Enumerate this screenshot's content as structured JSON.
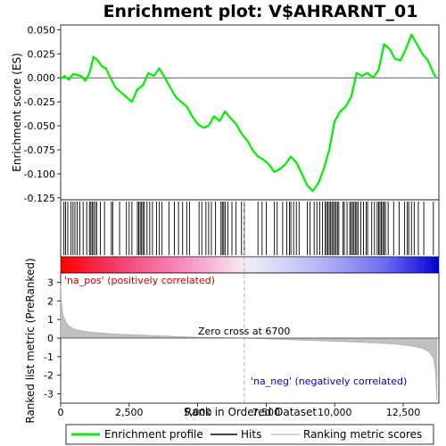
{
  "chart_data": [
    {
      "type": "line",
      "title": "Enrichment plot: V$AHRARNT_01",
      "ylabel": "Enrichment score (ES)",
      "xlim": [
        0,
        13800
      ],
      "ylim": [
        -0.127,
        0.055
      ],
      "yticks": [
        0.05,
        0.025,
        0.0,
        -0.025,
        -0.05,
        -0.075,
        -0.1,
        -0.125
      ],
      "ytick_labels": [
        "0.050",
        "0.025",
        "0.000",
        "-0.025",
        "-0.050",
        "-0.075",
        "-0.100",
        "-0.125"
      ],
      "series": [
        {
          "name": "Enrichment profile",
          "color": "#00ee00",
          "x": [
            0,
            150,
            300,
            450,
            600,
            750,
            900,
            1050,
            1200,
            1350,
            1500,
            1650,
            1800,
            2000,
            2200,
            2400,
            2600,
            2800,
            3000,
            3200,
            3400,
            3600,
            3800,
            4000,
            4200,
            4400,
            4600,
            4800,
            5000,
            5200,
            5400,
            5600,
            5800,
            6000,
            6200,
            6400,
            6600,
            6800,
            7000,
            7200,
            7400,
            7600,
            7800,
            8000,
            8200,
            8400,
            8600,
            8800,
            9000,
            9200,
            9400,
            9600,
            9800,
            10000,
            10200,
            10400,
            10600,
            10800,
            11000,
            11200,
            11400,
            11600,
            11800,
            12000,
            12200,
            12400,
            12600,
            12800,
            13000,
            13200,
            13400,
            13600,
            13700
          ],
          "y": [
            -0.001,
            0.002,
            -0.002,
            0.004,
            0.003,
            0.002,
            -0.003,
            0.005,
            0.022,
            0.018,
            0.012,
            0.01,
            0.001,
            -0.01,
            -0.015,
            -0.02,
            -0.025,
            -0.012,
            -0.008,
            0.005,
            0.002,
            0.01,
            0.0,
            -0.01,
            -0.02,
            -0.025,
            -0.03,
            -0.04,
            -0.048,
            -0.052,
            -0.05,
            -0.04,
            -0.045,
            -0.035,
            -0.042,
            -0.048,
            -0.058,
            -0.065,
            -0.075,
            -0.082,
            -0.085,
            -0.09,
            -0.098,
            -0.095,
            -0.09,
            -0.082,
            -0.088,
            -0.1,
            -0.112,
            -0.118,
            -0.11,
            -0.095,
            -0.075,
            -0.045,
            -0.035,
            -0.03,
            -0.02,
            0.005,
            0.002,
            0.005,
            0.0,
            0.008,
            0.035,
            0.03,
            0.02,
            0.018,
            0.03,
            0.045,
            0.035,
            0.025,
            0.018,
            0.005,
            0.0
          ]
        }
      ],
      "hits_label": "Hits",
      "hit_positions": [
        120,
        180,
        260,
        380,
        450,
        520,
        600,
        700,
        820,
        950,
        1050,
        1100,
        1150,
        1200,
        1260,
        1320,
        1450,
        1600,
        1850,
        1900,
        2150,
        2400,
        2500,
        2600,
        2800,
        2850,
        2900,
        2950,
        3000,
        3050,
        3150,
        3250,
        3350,
        3500,
        3600,
        3700,
        3950,
        4150,
        4300,
        4450,
        4600,
        4700,
        5050,
        5150,
        5300,
        5400,
        5500,
        5650,
        5850,
        5900,
        5950,
        6000,
        6100,
        6250,
        6400,
        6600,
        6700,
        7200,
        7350,
        7500,
        7800,
        7900,
        8100,
        8250,
        8350,
        8400,
        8500,
        8600,
        8700,
        9000,
        9100,
        9250,
        9350,
        9450,
        9550,
        9650,
        9700,
        9750,
        9800,
        9850,
        9900,
        9950,
        10000,
        10050,
        10100,
        10150,
        10300,
        10350,
        10450,
        10550,
        10600,
        10650,
        10700,
        10750,
        10800,
        10850,
        10950,
        11050,
        11150,
        11200,
        11350,
        11450,
        11550,
        11600,
        11650,
        11700,
        11750,
        11800,
        11850,
        11950,
        12150,
        12350,
        12550,
        12650,
        12700,
        12800,
        12900,
        13050,
        13250,
        13600
      ]
    },
    {
      "type": "area",
      "ylabel": "Ranked list metric (PreRanked)",
      "xlabel": "Rank in Ordered Dataset",
      "xlim": [
        0,
        13800
      ],
      "ylim": [
        -3.5,
        3.5
      ],
      "xticks": [
        0,
        2500,
        5000,
        7500,
        10000,
        12500
      ],
      "xtick_labels": [
        "0",
        "2,500",
        "5,000",
        "7,500",
        "10,000",
        "12,500"
      ],
      "yticks": [
        3,
        2,
        1,
        0,
        -1,
        -2,
        -3
      ],
      "ytick_labels": [
        "3",
        "2",
        "1",
        "0",
        "-1",
        "-2",
        "-3"
      ],
      "series": [
        {
          "name": "Ranking metric scores",
          "color": "#c0c0c0",
          "x": [
            0,
            20,
            50,
            100,
            200,
            300,
            500,
            800,
            1200,
            2000,
            3000,
            4000,
            5000,
            6000,
            6700,
            7500,
            8500,
            9500,
            10500,
            11500,
            12200,
            12800,
            13200,
            13450,
            13600,
            13680,
            13730
          ],
          "y": [
            2.9,
            2.2,
            1.6,
            1.2,
            0.85,
            0.65,
            0.48,
            0.38,
            0.3,
            0.22,
            0.16,
            0.1,
            0.05,
            0.02,
            0.0,
            -0.05,
            -0.1,
            -0.15,
            -0.2,
            -0.26,
            -0.32,
            -0.42,
            -0.55,
            -0.75,
            -1.1,
            -1.8,
            -3.4
          ]
        }
      ],
      "zero_cross_label": "Zero cross at 6700",
      "zero_cross": 6700,
      "pos_label": "'na_pos' (positively correlated)",
      "neg_label": "'na_neg' (negatively correlated)"
    }
  ],
  "legend": {
    "items": [
      {
        "label": "Enrichment profile",
        "color": "#00ee00"
      },
      {
        "label": "Hits",
        "color": "#000000"
      },
      {
        "label": "Ranking metric scores",
        "color": "#c0c0c0"
      }
    ]
  }
}
